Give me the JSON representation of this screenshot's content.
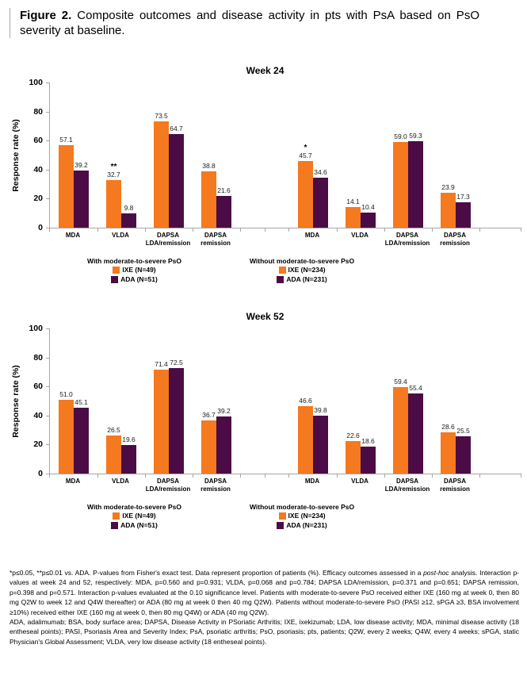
{
  "caption": {
    "label": "Figure 2.",
    "text": "Composite outcomes and disease activity in pts with PsA based on PsO severity at baseline."
  },
  "colors": {
    "ixe": "#F4791F",
    "ada": "#4B0C45",
    "axis": "#A6A6A6"
  },
  "chart_data": [
    {
      "type": "bar",
      "title": "Week 24",
      "ylabel": "Response rate (%)",
      "ylim": [
        0,
        100
      ],
      "yticks": [
        0,
        20,
        40,
        60,
        80,
        100
      ],
      "grid": false,
      "legend_position": "bottom",
      "groups": [
        {
          "name": "With moderate-to-severe PsO",
          "categories": [
            [
              "MDA"
            ],
            [
              "VLDA"
            ],
            [
              "DAPSA",
              "LDA/remission"
            ],
            [
              "DAPSA",
              "remission"
            ]
          ],
          "series": [
            {
              "name": "IXE (N=49)",
              "values": [
                57.1,
                32.7,
                73.5,
                38.8
              ],
              "annotations": [
                "",
                "**",
                "",
                ""
              ]
            },
            {
              "name": "ADA (N=51)",
              "values": [
                39.2,
                9.8,
                64.7,
                21.6
              ],
              "annotations": [
                "",
                "",
                "",
                ""
              ]
            }
          ]
        },
        {
          "name": "Without moderate-to-severe PsO",
          "categories": [
            [
              "MDA"
            ],
            [
              "VLDA"
            ],
            [
              "DAPSA",
              "LDA/remission"
            ],
            [
              "DAPSA",
              "remission"
            ]
          ],
          "series": [
            {
              "name": "IXE (N=234)",
              "values": [
                45.7,
                14.1,
                59.0,
                23.9
              ],
              "annotations": [
                "*",
                "",
                "",
                ""
              ]
            },
            {
              "name": "ADA (N=231)",
              "values": [
                34.6,
                10.4,
                59.3,
                17.3
              ],
              "annotations": [
                "",
                "",
                "",
                ""
              ]
            }
          ]
        }
      ]
    },
    {
      "type": "bar",
      "title": "Week 52",
      "ylabel": "Response rate (%)",
      "ylim": [
        0,
        100
      ],
      "yticks": [
        0,
        20,
        40,
        60,
        80,
        100
      ],
      "grid": false,
      "legend_position": "bottom",
      "groups": [
        {
          "name": "With moderate-to-severe PsO",
          "categories": [
            [
              "MDA"
            ],
            [
              "VLDA"
            ],
            [
              "DAPSA",
              "LDA/remission"
            ],
            [
              "DAPSA",
              "remission"
            ]
          ],
          "series": [
            {
              "name": "IXE (N=49)",
              "values": [
                51.0,
                26.5,
                71.4,
                36.7
              ],
              "annotations": [
                "",
                "",
                "",
                ""
              ]
            },
            {
              "name": "ADA (N=51)",
              "values": [
                45.1,
                19.6,
                72.5,
                39.2
              ],
              "annotations": [
                "",
                "",
                "",
                ""
              ]
            }
          ]
        },
        {
          "name": "Without moderate-to-severe PsO",
          "categories": [
            [
              "MDA"
            ],
            [
              "VLDA"
            ],
            [
              "DAPSA",
              "LDA/remission"
            ],
            [
              "DAPSA",
              "remission"
            ]
          ],
          "series": [
            {
              "name": "IXE (N=234)",
              "values": [
                46.6,
                22.6,
                59.4,
                28.6
              ],
              "annotations": [
                "",
                "",
                "",
                ""
              ]
            },
            {
              "name": "ADA (N=231)",
              "values": [
                39.8,
                18.6,
                55.4,
                25.5
              ],
              "annotations": [
                "",
                "",
                "",
                ""
              ]
            }
          ]
        }
      ]
    }
  ],
  "footnotes": {
    "p1_before": "*p≤0.05, **p≤0.01 vs. ADA. P-values from Fisher's exact test. Data represent proportion of patients (%). Efficacy outcomes assessed in a ",
    "p1_italic": "post-hoc",
    "p1_after": " analysis. Interaction p-values at week 24 and 52, respectively: MDA, p=0.560 and p=0.931; VLDA, p=0.068 and p=0.784; DAPSA LDA/remission, p=0.371 and p=0.651; DAPSA remission, p=0.398 and p=0.571. Interaction p-values evaluated at the 0.10 significance level. Patients with moderate-to-severe PsO received either IXE (160 mg at week 0, then 80 mg Q2W to week 12 and Q4W thereafter) or ADA (80 mg at week 0 then 40 mg Q2W). Patients without moderate-to-severe PsO (PASI ≥12, sPGA ≥3, BSA involvement ≥10%) received either IXE (160 mg at week 0, then 80 mg Q4W) or ADA (40 mg Q2W).",
    "p2": "ADA, adalimumab; BSA, body surface area; DAPSA, Disease Activity in PSoriatic Arthritis; IXE, ixekizumab; LDA, low disease activity; MDA, minimal disease activity (18 entheseal points); PASI, Psoriasis Area and Severity Index; PsA, psoriatic arthritis; PsO, psoriasis; pts, patients; Q2W, every 2 weeks; Q4W, every 4 weeks; sPGA, static Physician's Global Assessment; VLDA, very low disease activity (18 entheseal points)."
  }
}
